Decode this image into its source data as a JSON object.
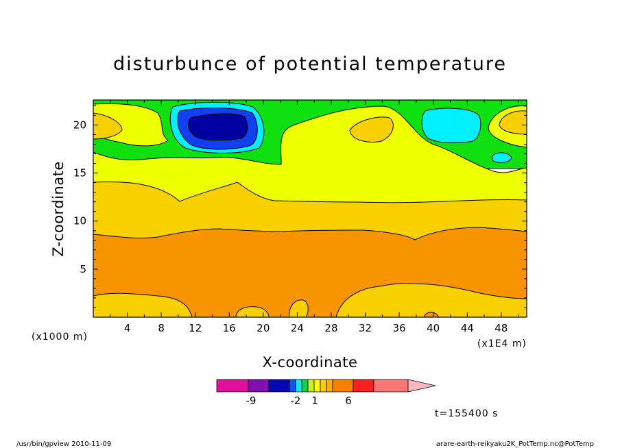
{
  "chart_data": {
    "type": "heatmap",
    "title": "disturbunce of potential temperature",
    "xlabel": "X-coordinate",
    "ylabel": "Z-coordinate",
    "x_unit_left": "(x1000 m)",
    "x_unit_right": "(x1E4 m)",
    "x_ticks": [
      "4",
      "8",
      "12",
      "16",
      "20",
      "24",
      "28",
      "32",
      "36",
      "40",
      "44",
      "48"
    ],
    "x_tick_values": [
      4,
      8,
      12,
      16,
      20,
      24,
      28,
      32,
      36,
      40,
      44,
      48
    ],
    "xlim": [
      0,
      51
    ],
    "y_ticks": [
      "5",
      "10",
      "15",
      "20"
    ],
    "y_tick_values": [
      5,
      10,
      15,
      20
    ],
    "ylim": [
      0,
      22.6
    ],
    "time_label": "t=155400 s",
    "colorbar": {
      "colors": [
        "#e0109f",
        "#8010b0",
        "#0808b0",
        "#1050f0",
        "#10e8f0",
        "#10d050",
        "#c8f020",
        "#f8f810",
        "#f8d000",
        "#f8b000",
        "#f88000",
        "#f82020",
        "#f87878",
        "#f8b8c0"
      ],
      "tick_labels": [
        "-9",
        "-2",
        "1",
        "6"
      ]
    },
    "levels": {
      "c_orange_dark": "#f89400",
      "c_orange": "#f8d000",
      "c_yellow": "#f0ff00",
      "c_green": "#10e010",
      "c_cyan": "#00f0ff",
      "c_blue": "#1040f0",
      "c_navy": "#0000a0"
    }
  },
  "footer": {
    "left": "/usr/bin/gpview   2010-11-09",
    "right": "arare-earth-reikyaku2K_PotTemp.nc@PotTemp"
  }
}
